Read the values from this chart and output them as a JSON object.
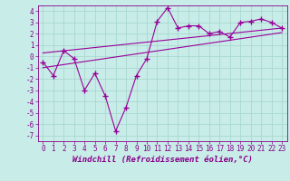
{
  "title": "",
  "xlabel": "Windchill (Refroidissement éolien,°C)",
  "ylabel": "",
  "background_color": "#c8ece8",
  "grid_color": "#a8d8d0",
  "line_color": "#990099",
  "x_data": [
    0,
    1,
    2,
    3,
    4,
    5,
    6,
    7,
    8,
    9,
    10,
    11,
    12,
    13,
    14,
    15,
    16,
    17,
    18,
    19,
    20,
    21,
    22,
    23
  ],
  "y_data": [
    -0.5,
    -1.7,
    0.5,
    -0.2,
    -3.0,
    -1.5,
    -3.5,
    -6.6,
    -4.5,
    -1.7,
    -0.2,
    3.1,
    4.3,
    2.5,
    2.7,
    2.7,
    2.0,
    2.2,
    1.7,
    3.0,
    3.1,
    3.3,
    3.0,
    2.5
  ],
  "trend1_x": [
    0,
    23
  ],
  "trend1_y": [
    -1.0,
    2.1
  ],
  "trend2_x": [
    0,
    23
  ],
  "trend2_y": [
    0.3,
    2.5
  ],
  "xlim": [
    -0.5,
    23.5
  ],
  "ylim": [
    -7.5,
    4.5
  ],
  "yticks": [
    4,
    3,
    2,
    1,
    0,
    -1,
    -2,
    -3,
    -4,
    -5,
    -6,
    -7
  ],
  "xticks": [
    0,
    1,
    2,
    3,
    4,
    5,
    6,
    7,
    8,
    9,
    10,
    11,
    12,
    13,
    14,
    15,
    16,
    17,
    18,
    19,
    20,
    21,
    22,
    23
  ],
  "font_color": "#880088",
  "tick_fontsize": 5.5,
  "xlabel_fontsize": 6.5
}
